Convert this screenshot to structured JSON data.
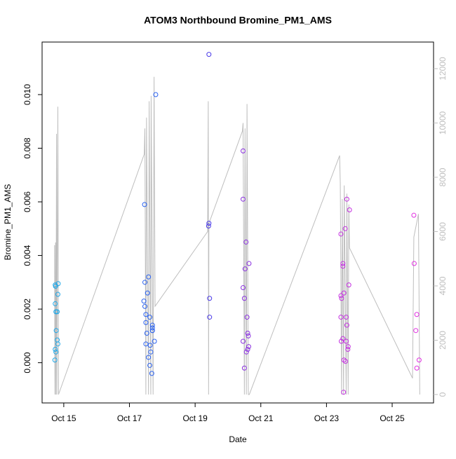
{
  "chart_data": {
    "type": "scatter",
    "title": "ATOM3 Northbound Bromine_PM1_AMS",
    "xlabel": "Date",
    "ylabel": "Bromine_PM1_AMS",
    "xlim": [
      14.34,
      26.26
    ],
    "ylim": [
      -0.0015,
      0.01196
    ],
    "y2lim": [
      -310,
      12980
    ],
    "xticks": [
      {
        "value": 15,
        "label": "Oct 15"
      },
      {
        "value": 17,
        "label": "Oct 17"
      },
      {
        "value": 19,
        "label": "Oct 19"
      },
      {
        "value": 21,
        "label": "Oct 21"
      },
      {
        "value": 23,
        "label": "Oct 23"
      },
      {
        "value": 25,
        "label": "Oct 25"
      }
    ],
    "yticks": [
      {
        "value": 0,
        "label": "0.000"
      },
      {
        "value": 0.002,
        "label": "0.002"
      },
      {
        "value": 0.004,
        "label": "0.004"
      },
      {
        "value": 0.006,
        "label": "0.006"
      },
      {
        "value": 0.008,
        "label": "0.008"
      },
      {
        "value": 0.01,
        "label": "0.010"
      }
    ],
    "y2ticks": [
      0,
      2000,
      4000,
      6000,
      8000,
      10000,
      12000
    ],
    "series": [
      {
        "color": "#1fa8e8",
        "x": [
          14.74,
          14.75,
          14.74,
          14.76,
          14.8,
          14.77,
          14.8,
          14.82,
          14.74,
          14.76,
          14.73,
          14.83,
          14.82
        ],
        "values": [
          0.0029,
          0.00285,
          0.0022,
          0.0019,
          0.0019,
          0.0012,
          0.00085,
          0.0007,
          0.0005,
          0.0004,
          0.0001,
          0.00295,
          0.00255
        ]
      },
      {
        "color": "#2a62f0",
        "x": [
          17.46,
          17.47,
          17.58,
          17.55,
          17.44,
          17.47,
          17.5,
          17.5,
          17.7,
          17.53,
          17.5,
          17.65,
          17.58,
          17.62,
          17.68,
          17.62,
          17.7,
          17.7,
          17.7,
          17.76,
          17.63,
          17.8
        ],
        "values": [
          0.0059,
          0.003,
          0.0032,
          0.0026,
          0.0023,
          0.0021,
          0.0018,
          0.0015,
          0.0012,
          0.0011,
          0.0007,
          0.0004,
          0.0002,
          -0.0001,
          -0.0004,
          0.0017,
          0.0013,
          0.0012,
          0.0014,
          0.0008,
          0.00065,
          0.01
        ]
      },
      {
        "color": "#4a3ae8",
        "x": [
          19.42,
          19.42,
          19.41,
          19.44,
          19.44
        ],
        "values": [
          0.0115,
          0.0052,
          0.0051,
          0.0024,
          0.0017
        ]
      },
      {
        "color": "#8a30e0",
        "x": [
          20.46,
          20.46,
          20.55,
          20.52,
          20.64,
          20.46,
          20.5,
          20.58,
          20.6,
          20.62,
          20.46,
          20.63,
          20.6,
          20.56,
          20.5
        ],
        "values": [
          0.0079,
          0.0061,
          0.0045,
          0.0035,
          0.0037,
          0.0028,
          0.0024,
          0.0017,
          0.0011,
          0.001,
          0.0008,
          0.0006,
          0.0005,
          0.0004,
          -0.0002
        ]
      },
      {
        "color": "#c430e0",
        "x": [
          23.44,
          23.44,
          23.46,
          23.5,
          23.5,
          23.53,
          23.44,
          23.6,
          23.62,
          23.5,
          23.45,
          23.6,
          23.65,
          23.53,
          23.58,
          23.52,
          23.57,
          23.62,
          23.7,
          23.68,
          23.66
        ],
        "values": [
          0.0048,
          0.0025,
          0.0024,
          0.0037,
          0.0036,
          0.0026,
          0.0017,
          0.0017,
          0.0014,
          0.0009,
          0.0008,
          0.0008,
          0.0005,
          0.0001,
          5e-05,
          -0.0011,
          0.005,
          0.0061,
          0.0057,
          0.0029,
          0.0006
        ]
      },
      {
        "color": "#e030e0",
        "x": [
          25.66,
          25.67,
          25.75,
          25.72,
          25.82,
          25.75
        ],
        "values": [
          0.0055,
          0.0037,
          0.0018,
          0.0012,
          0.0001,
          -0.0002
        ]
      },
      {
        "type": "line",
        "axis": "y2",
        "color": "#bebebe",
        "x": [
          14.72,
          14.73,
          14.75,
          14.76,
          14.78,
          14.79,
          14.82,
          14.84,
          17.45,
          17.47,
          17.5,
          17.52,
          17.58,
          17.6,
          17.65,
          17.66,
          17.72,
          17.75,
          17.78,
          19.38,
          19.4,
          19.41,
          19.42,
          20.44,
          20.46,
          20.5,
          20.52,
          20.56,
          20.58,
          20.62,
          20.65,
          23.4,
          23.42,
          23.46,
          23.48,
          23.52,
          23.54,
          23.6,
          23.62,
          23.66,
          23.68,
          23.7,
          25.62,
          25.66,
          25.8,
          25.84
        ],
        "values": [
          5500,
          0,
          5600,
          0,
          9600,
          0,
          10600,
          0,
          8850,
          9800,
          0,
          10200,
          0,
          10800,
          0,
          11000,
          0,
          11700,
          3250,
          6000,
          10800,
          0,
          6300,
          9700,
          10000,
          0,
          9800,
          0,
          10700,
          0,
          0,
          8800,
          7800,
          0,
          7200,
          0,
          7700,
          0,
          7400,
          0,
          7000,
          5400,
          600,
          5800,
          6650,
          0
        ]
      }
    ]
  }
}
